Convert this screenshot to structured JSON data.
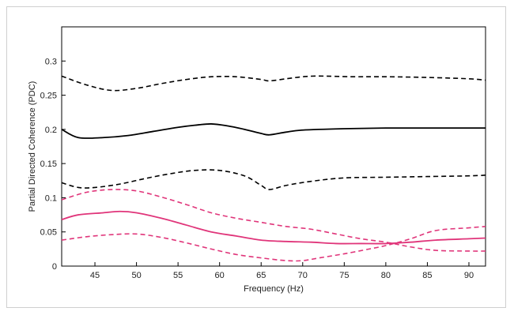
{
  "chart_data": {
    "type": "line",
    "title": "",
    "xlabel": "Frequency (Hz)",
    "ylabel": "Partial Directed Coherence (PDC)",
    "xlim": [
      41,
      92
    ],
    "ylim": [
      0,
      0.35
    ],
    "x_ticks": [
      45,
      50,
      55,
      60,
      65,
      70,
      75,
      80,
      85,
      90
    ],
    "y_ticks": [
      0,
      0.05,
      0.1,
      0.15,
      0.2,
      0.25,
      0.3
    ],
    "y_tick_labels": [
      "0",
      "0.05",
      "0.1",
      "0.15",
      "0.2",
      "0.25",
      "0.3"
    ],
    "grid": false,
    "legend": "none",
    "colors": {
      "black": "#000000",
      "magenta": "#e0357a"
    },
    "series": [
      {
        "color": "#000000",
        "style": "dashed",
        "x": [
          41,
          44,
          47,
          50,
          53,
          56,
          59,
          62,
          65,
          66,
          68,
          70,
          72,
          76,
          80,
          85,
          90,
          92
        ],
        "y": [
          0.278,
          0.265,
          0.257,
          0.26,
          0.267,
          0.273,
          0.277,
          0.277,
          0.273,
          0.271,
          0.274,
          0.277,
          0.278,
          0.277,
          0.277,
          0.276,
          0.274,
          0.272
        ]
      },
      {
        "color": "#000000",
        "style": "solid",
        "x": [
          41,
          43,
          46,
          49,
          52,
          55,
          57,
          59,
          61,
          63,
          65,
          66,
          68,
          70,
          75,
          80,
          85,
          90,
          92
        ],
        "y": [
          0.2,
          0.188,
          0.188,
          0.191,
          0.197,
          0.203,
          0.206,
          0.208,
          0.205,
          0.2,
          0.194,
          0.192,
          0.196,
          0.199,
          0.201,
          0.202,
          0.202,
          0.202,
          0.202
        ]
      },
      {
        "color": "#000000",
        "style": "dashed",
        "x": [
          41,
          43,
          45,
          48,
          51,
          54,
          57,
          60,
          63,
          65,
          66,
          68,
          71,
          75,
          80,
          85,
          90,
          92
        ],
        "y": [
          0.122,
          0.115,
          0.115,
          0.12,
          0.128,
          0.135,
          0.14,
          0.14,
          0.132,
          0.118,
          0.112,
          0.118,
          0.124,
          0.129,
          0.13,
          0.131,
          0.132,
          0.133
        ]
      },
      {
        "color": "#e0357a",
        "style": "dashed",
        "x": [
          41,
          44,
          47,
          50,
          53,
          56,
          59,
          62,
          65,
          68,
          71,
          74,
          77,
          80,
          83,
          86,
          90,
          92
        ],
        "y": [
          0.097,
          0.108,
          0.112,
          0.11,
          0.101,
          0.09,
          0.078,
          0.07,
          0.064,
          0.058,
          0.054,
          0.047,
          0.04,
          0.035,
          0.028,
          0.023,
          0.022,
          0.022
        ]
      },
      {
        "color": "#e0357a",
        "style": "solid",
        "x": [
          41,
          43,
          46,
          48,
          50,
          53,
          56,
          59,
          62,
          65,
          68,
          71,
          74,
          77,
          80,
          83,
          86,
          90,
          92
        ],
        "y": [
          0.068,
          0.075,
          0.078,
          0.08,
          0.078,
          0.07,
          0.06,
          0.05,
          0.044,
          0.038,
          0.036,
          0.035,
          0.033,
          0.033,
          0.033,
          0.035,
          0.038,
          0.04,
          0.041
        ]
      },
      {
        "color": "#e0357a",
        "style": "dashed",
        "x": [
          41,
          44,
          47,
          50,
          53,
          56,
          59,
          62,
          65,
          68,
          70,
          72,
          75,
          78,
          80,
          83,
          86,
          90,
          92
        ],
        "y": [
          0.038,
          0.043,
          0.046,
          0.047,
          0.042,
          0.034,
          0.025,
          0.017,
          0.012,
          0.008,
          0.008,
          0.012,
          0.018,
          0.025,
          0.03,
          0.04,
          0.052,
          0.056,
          0.058
        ]
      }
    ]
  }
}
